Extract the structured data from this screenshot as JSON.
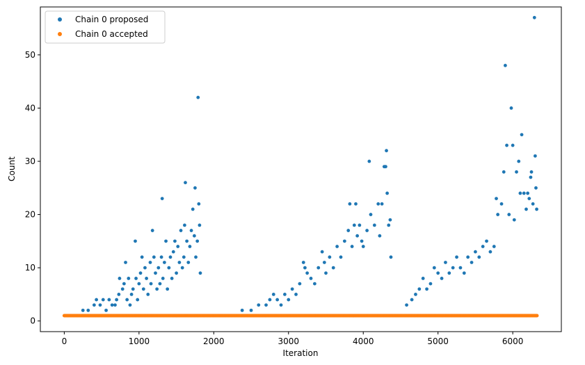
{
  "chart_data": {
    "type": "scatter",
    "xlabel": "Iteration",
    "ylabel": "Count",
    "xlim": [
      -320,
      6650
    ],
    "ylim": [
      -2,
      59
    ],
    "x_ticks": [
      0,
      1000,
      2000,
      3000,
      4000,
      5000,
      6000
    ],
    "y_ticks": [
      0,
      10,
      20,
      30,
      40,
      50
    ],
    "grid": false,
    "legend_position": "top-left",
    "series": [
      {
        "name": "Chain 0 proposed",
        "color": "#1f77b4",
        "points": [
          [
            250,
            2
          ],
          [
            320,
            2
          ],
          [
            400,
            3
          ],
          [
            430,
            4
          ],
          [
            480,
            3
          ],
          [
            520,
            4
          ],
          [
            560,
            2
          ],
          [
            600,
            4
          ],
          [
            640,
            3
          ],
          [
            680,
            3
          ],
          [
            700,
            4
          ],
          [
            730,
            5
          ],
          [
            740,
            8
          ],
          [
            780,
            6
          ],
          [
            800,
            7
          ],
          [
            820,
            11
          ],
          [
            840,
            4
          ],
          [
            860,
            8
          ],
          [
            880,
            3
          ],
          [
            900,
            5
          ],
          [
            920,
            6
          ],
          [
            950,
            15
          ],
          [
            960,
            8
          ],
          [
            980,
            4
          ],
          [
            1000,
            7
          ],
          [
            1020,
            9
          ],
          [
            1040,
            12
          ],
          [
            1060,
            6
          ],
          [
            1080,
            10
          ],
          [
            1100,
            8
          ],
          [
            1120,
            5
          ],
          [
            1150,
            11
          ],
          [
            1160,
            7
          ],
          [
            1180,
            17
          ],
          [
            1200,
            12
          ],
          [
            1220,
            9
          ],
          [
            1240,
            6
          ],
          [
            1260,
            10
          ],
          [
            1280,
            7
          ],
          [
            1300,
            12
          ],
          [
            1310,
            23
          ],
          [
            1320,
            8
          ],
          [
            1340,
            11
          ],
          [
            1360,
            15
          ],
          [
            1380,
            6
          ],
          [
            1400,
            10
          ],
          [
            1420,
            12
          ],
          [
            1440,
            8
          ],
          [
            1460,
            13
          ],
          [
            1480,
            15
          ],
          [
            1500,
            9
          ],
          [
            1520,
            14
          ],
          [
            1540,
            11
          ],
          [
            1560,
            17
          ],
          [
            1580,
            10
          ],
          [
            1600,
            12
          ],
          [
            1610,
            18
          ],
          [
            1620,
            26
          ],
          [
            1640,
            15
          ],
          [
            1660,
            11
          ],
          [
            1680,
            14
          ],
          [
            1700,
            17
          ],
          [
            1720,
            21
          ],
          [
            1740,
            16
          ],
          [
            1750,
            25
          ],
          [
            1760,
            12
          ],
          [
            1780,
            15
          ],
          [
            1790,
            42
          ],
          [
            1800,
            22
          ],
          [
            1810,
            18
          ],
          [
            1820,
            9
          ],
          [
            2380,
            2
          ],
          [
            2500,
            2
          ],
          [
            2600,
            3
          ],
          [
            2700,
            3
          ],
          [
            2750,
            4
          ],
          [
            2800,
            5
          ],
          [
            2850,
            4
          ],
          [
            2900,
            3
          ],
          [
            2950,
            5
          ],
          [
            3000,
            4
          ],
          [
            3050,
            6
          ],
          [
            3100,
            5
          ],
          [
            3150,
            7
          ],
          [
            3200,
            11
          ],
          [
            3220,
            10
          ],
          [
            3250,
            9
          ],
          [
            3300,
            8
          ],
          [
            3350,
            7
          ],
          [
            3400,
            10
          ],
          [
            3450,
            13
          ],
          [
            3480,
            11
          ],
          [
            3500,
            9
          ],
          [
            3550,
            12
          ],
          [
            3600,
            10
          ],
          [
            3650,
            14
          ],
          [
            3700,
            12
          ],
          [
            3750,
            15
          ],
          [
            3800,
            17
          ],
          [
            3820,
            22
          ],
          [
            3850,
            14
          ],
          [
            3880,
            18
          ],
          [
            3900,
            22
          ],
          [
            3920,
            16
          ],
          [
            3950,
            18
          ],
          [
            3980,
            15
          ],
          [
            4000,
            14
          ],
          [
            4050,
            17
          ],
          [
            4080,
            30
          ],
          [
            4100,
            20
          ],
          [
            4150,
            18
          ],
          [
            4200,
            22
          ],
          [
            4220,
            16
          ],
          [
            4250,
            22
          ],
          [
            4280,
            29
          ],
          [
            4300,
            29
          ],
          [
            4310,
            32
          ],
          [
            4320,
            24
          ],
          [
            4340,
            18
          ],
          [
            4360,
            19
          ],
          [
            4370,
            12
          ],
          [
            4580,
            3
          ],
          [
            4650,
            4
          ],
          [
            4700,
            5
          ],
          [
            4750,
            6
          ],
          [
            4800,
            8
          ],
          [
            4850,
            6
          ],
          [
            4900,
            7
          ],
          [
            4950,
            10
          ],
          [
            5000,
            9
          ],
          [
            5050,
            8
          ],
          [
            5100,
            11
          ],
          [
            5150,
            9
          ],
          [
            5200,
            10
          ],
          [
            5250,
            12
          ],
          [
            5300,
            10
          ],
          [
            5350,
            9
          ],
          [
            5400,
            12
          ],
          [
            5450,
            11
          ],
          [
            5500,
            13
          ],
          [
            5550,
            12
          ],
          [
            5600,
            14
          ],
          [
            5650,
            15
          ],
          [
            5700,
            13
          ],
          [
            5750,
            14
          ],
          [
            5780,
            23
          ],
          [
            5800,
            20
          ],
          [
            5850,
            22
          ],
          [
            5880,
            28
          ],
          [
            5900,
            48
          ],
          [
            5920,
            33
          ],
          [
            5950,
            20
          ],
          [
            5980,
            40
          ],
          [
            6000,
            33
          ],
          [
            6020,
            19
          ],
          [
            6050,
            28
          ],
          [
            6080,
            30
          ],
          [
            6100,
            24
          ],
          [
            6120,
            35
          ],
          [
            6150,
            24
          ],
          [
            6180,
            21
          ],
          [
            6200,
            24
          ],
          [
            6220,
            23
          ],
          [
            6240,
            27
          ],
          [
            6250,
            28
          ],
          [
            6270,
            22
          ],
          [
            6290,
            57
          ],
          [
            6300,
            31
          ],
          [
            6310,
            25
          ],
          [
            6320,
            21
          ]
        ]
      },
      {
        "name": "Chain 0 accepted",
        "color": "#ff7f0e",
        "points": [
          [
            0,
            1
          ],
          [
            6330,
            1
          ]
        ]
      }
    ]
  }
}
